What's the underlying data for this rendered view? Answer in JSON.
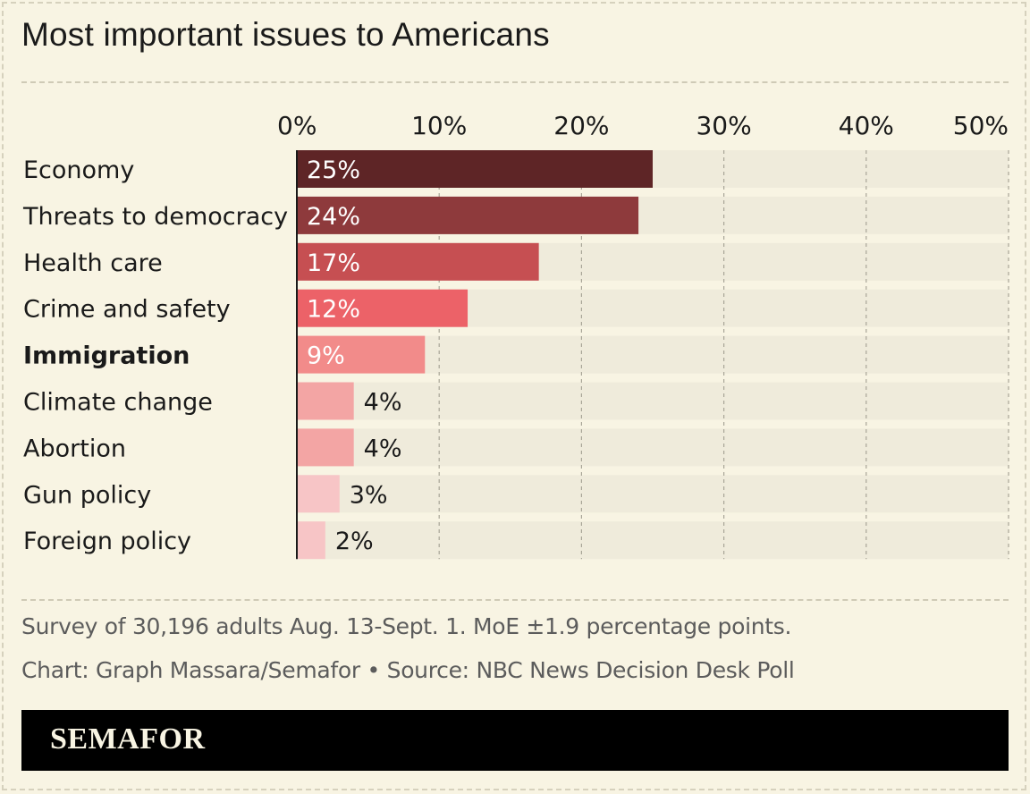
{
  "chart_data": {
    "type": "bar",
    "orientation": "horizontal",
    "title": "Most important issues to Americans",
    "categories": [
      "Economy",
      "Threats to democracy",
      "Health care",
      "Crime and safety",
      "Immigration",
      "Climate change",
      "Abortion",
      "Gun policy",
      "Foreign policy"
    ],
    "values": [
      25,
      24,
      17,
      12,
      9,
      4,
      4,
      3,
      2
    ],
    "value_labels": [
      "25%",
      "24%",
      "17%",
      "12%",
      "9%",
      "4%",
      "4%",
      "3%",
      "2%"
    ],
    "highlighted_category": "Immigration",
    "xlim": [
      0,
      50
    ],
    "x_ticks": [
      0,
      10,
      20,
      30,
      40,
      50
    ],
    "x_tick_labels": [
      "0%",
      "10%",
      "20%",
      "30%",
      "40%",
      "50%"
    ],
    "grid": true,
    "colors": [
      "#5e2526",
      "#8e3a3c",
      "#c64f52",
      "#ec6268",
      "#f28b8a",
      "#f3a5a4",
      "#f3a5a4",
      "#f7c5c6",
      "#f7c5c6"
    ],
    "track_color": "#efebdb"
  },
  "notes": {
    "survey": "Survey of 30,196 adults Aug. 13-Sept. 1. MoE ±1.9 percentage points.",
    "credit": "Chart: Graph Massara/Semafor • Source: NBC News Decision Desk Poll"
  },
  "brand": {
    "name": "SEMAFOR"
  }
}
